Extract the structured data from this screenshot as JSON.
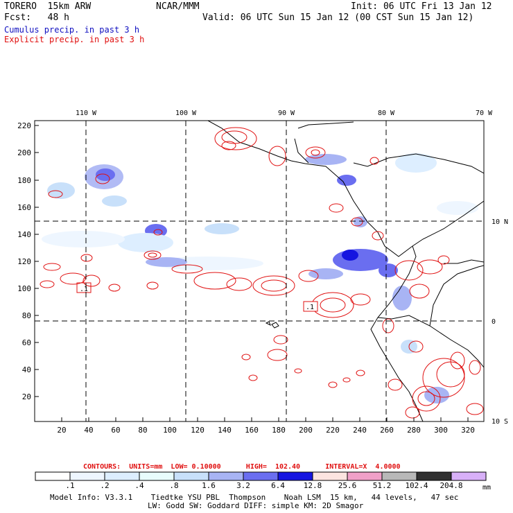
{
  "header": {
    "model": "TORERO  15km ARW",
    "org": "NCAR/MMM",
    "init": "Init: 06 UTC Fri 13 Jan 12",
    "fcst": "Fcst:   48 h",
    "valid": "Valid: 06 UTC Sun 15 Jan 12 (00 CST Sun 15 Jan 12)"
  },
  "legend": {
    "cumulus": "Cumulus precip. in past 3 h",
    "explicit": "Explicit precip. in past 3 h"
  },
  "axes": {
    "top_lon": [
      "110 W",
      "100 W",
      "90 W",
      "80 W",
      "70 W"
    ],
    "right_lat": [
      "10 N",
      "0",
      "10 S"
    ],
    "left_y": [
      "220",
      "200",
      "180",
      "160",
      "140",
      "120",
      "100",
      "80",
      "60",
      "40",
      "20"
    ],
    "bottom_x": [
      "20",
      "40",
      "60",
      "80",
      "100",
      "120",
      "140",
      "160",
      "180",
      "200",
      "220",
      "240",
      "260",
      "280",
      "300",
      "320"
    ]
  },
  "map": {
    "box_labels": [
      ".1",
      ".1"
    ]
  },
  "contours": {
    "line": "CONTOURS:  UNITS=mm  LOW= 0.10000      HIGH=  102.40      INTERVAL=X  4.0000"
  },
  "colorbar": {
    "thresholds": [
      ".1",
      ".2",
      ".4",
      ".8",
      "1.6",
      "3.2",
      "6.4",
      "12.8",
      "25.6",
      "51.2",
      "102.4",
      "204.8"
    ],
    "unit": "mm",
    "colors": [
      "#ffffff",
      "#eef6ff",
      "#ddeeff",
      "#e8fcfc",
      "#c8e0fa",
      "#a8b4f4",
      "#6a6ef0",
      "#1515e0",
      "#fce4e0",
      "#f0a0c8",
      "#b8b8b8",
      "#303030",
      "#d8b0f8"
    ]
  },
  "footer": {
    "line1": "Model Info: V3.3.1    Tiedtke YSU PBL  Thompson    Noah LSM  15 km,   44 levels,   47 sec",
    "line2": "LW: Godd SW: Goddard DIFF: simple KM: 2D Smagor"
  }
}
